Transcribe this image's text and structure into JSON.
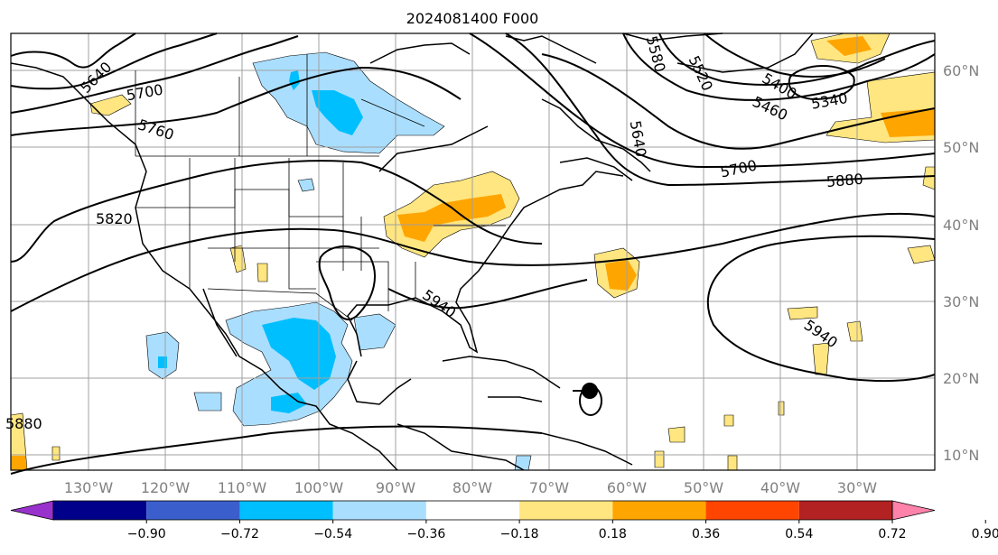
{
  "title": "2024081400 F000",
  "lon_ticks": [
    "130°W",
    "120°W",
    "110°W",
    "100°W",
    "90°W",
    "80°W",
    "70°W",
    "60°W",
    "50°W",
    "40°W",
    "30°W"
  ],
  "lat_ticks": [
    "60°N",
    "50°N",
    "40°N",
    "30°N",
    "20°N",
    "10°N"
  ],
  "colorbar": {
    "ticks": [
      "−0.90",
      "−0.72",
      "−0.54",
      "−0.36",
      "−0.18",
      "0.18",
      "0.36",
      "0.54",
      "0.72",
      "0.90"
    ],
    "colors": [
      "#9932cc",
      "#00008b",
      "#3a5fcd",
      "#00bfff",
      "#aadeff",
      "#ffffff",
      "#ffe680",
      "#ffa500",
      "#ff4500",
      "#b22222",
      "#ff82ab"
    ]
  },
  "contour_labels": [
    "5640",
    "5700",
    "5760",
    "5820",
    "5580",
    "5520",
    "5640",
    "5400",
    "5460",
    "5340",
    "5700",
    "5880",
    "5940",
    "5940",
    "5880"
  ],
  "marker": {
    "lon": -65,
    "lat": 18
  }
}
